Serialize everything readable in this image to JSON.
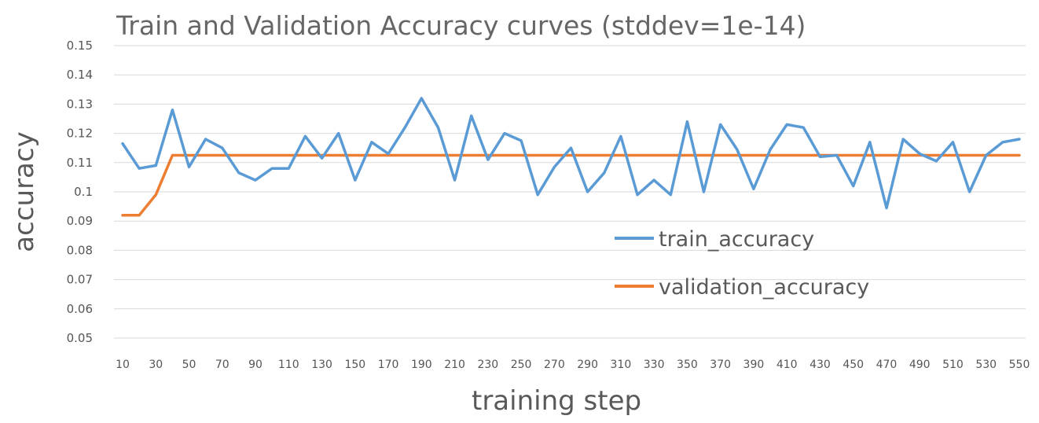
{
  "chart_data": {
    "type": "line",
    "title": "Train and Validation Accuracy curves (stddev=1e-14)",
    "xlabel": "training step",
    "ylabel": "accuracy",
    "ylim": [
      0.05,
      0.15
    ],
    "yticks": [
      "0.15",
      "0.14",
      "0.13",
      "0.12",
      "0.11",
      "0.1",
      "0.09",
      "0.08",
      "0.07",
      "0.06",
      "0.05"
    ],
    "ytick_values": [
      0.15,
      0.14,
      0.13,
      0.12,
      0.11,
      0.1,
      0.09,
      0.08,
      0.07,
      0.06,
      0.05
    ],
    "xticks": [
      "10",
      "30",
      "50",
      "70",
      "90",
      "110",
      "130",
      "150",
      "170",
      "190",
      "210",
      "230",
      "250",
      "270",
      "290",
      "310",
      "330",
      "350",
      "370",
      "390",
      "410",
      "430",
      "450",
      "470",
      "490",
      "510",
      "530",
      "550"
    ],
    "x": [
      10,
      20,
      30,
      40,
      50,
      60,
      70,
      80,
      90,
      100,
      110,
      120,
      130,
      140,
      150,
      160,
      170,
      180,
      190,
      200,
      210,
      220,
      230,
      240,
      250,
      260,
      270,
      280,
      290,
      300,
      310,
      320,
      330,
      340,
      350,
      360,
      370,
      380,
      390,
      400,
      410,
      420,
      430,
      440,
      450,
      460,
      470,
      480,
      490,
      500,
      510,
      520,
      530,
      540,
      550
    ],
    "grid": true,
    "legend_position": "center-right",
    "series": [
      {
        "name": "train_accuracy",
        "color": "#5b9bd5",
        "values": [
          0.1165,
          0.108,
          0.109,
          0.128,
          0.1085,
          0.118,
          0.115,
          0.1065,
          0.104,
          0.108,
          0.108,
          0.119,
          0.1115,
          0.12,
          0.104,
          0.117,
          0.113,
          0.122,
          0.132,
          0.122,
          0.104,
          0.126,
          0.111,
          0.12,
          0.1175,
          0.099,
          0.1085,
          0.115,
          0.1,
          0.1065,
          0.119,
          0.099,
          0.104,
          0.099,
          0.124,
          0.1,
          0.123,
          0.1145,
          0.101,
          0.1145,
          0.123,
          0.122,
          0.112,
          0.1125,
          0.102,
          0.117,
          0.0945,
          0.118,
          0.113,
          0.1105,
          0.117,
          0.1,
          0.1125,
          0.117,
          0.118
        ]
      },
      {
        "name": "validation_accuracy",
        "color": "#ed7d31",
        "values": [
          0.092,
          0.092,
          0.099,
          0.1125,
          0.1125,
          0.1125,
          0.1125,
          0.1125,
          0.1125,
          0.1125,
          0.1125,
          0.1125,
          0.1125,
          0.1125,
          0.1125,
          0.1125,
          0.1125,
          0.1125,
          0.1125,
          0.1125,
          0.1125,
          0.1125,
          0.1125,
          0.1125,
          0.1125,
          0.1125,
          0.1125,
          0.1125,
          0.1125,
          0.1125,
          0.1125,
          0.1125,
          0.1125,
          0.1125,
          0.1125,
          0.1125,
          0.1125,
          0.1125,
          0.1125,
          0.1125,
          0.1125,
          0.1125,
          0.1125,
          0.1125,
          0.1125,
          0.1125,
          0.1125,
          0.1125,
          0.1125,
          0.1125,
          0.1125,
          0.1125,
          0.1125,
          0.1125,
          0.1125
        ]
      }
    ]
  }
}
